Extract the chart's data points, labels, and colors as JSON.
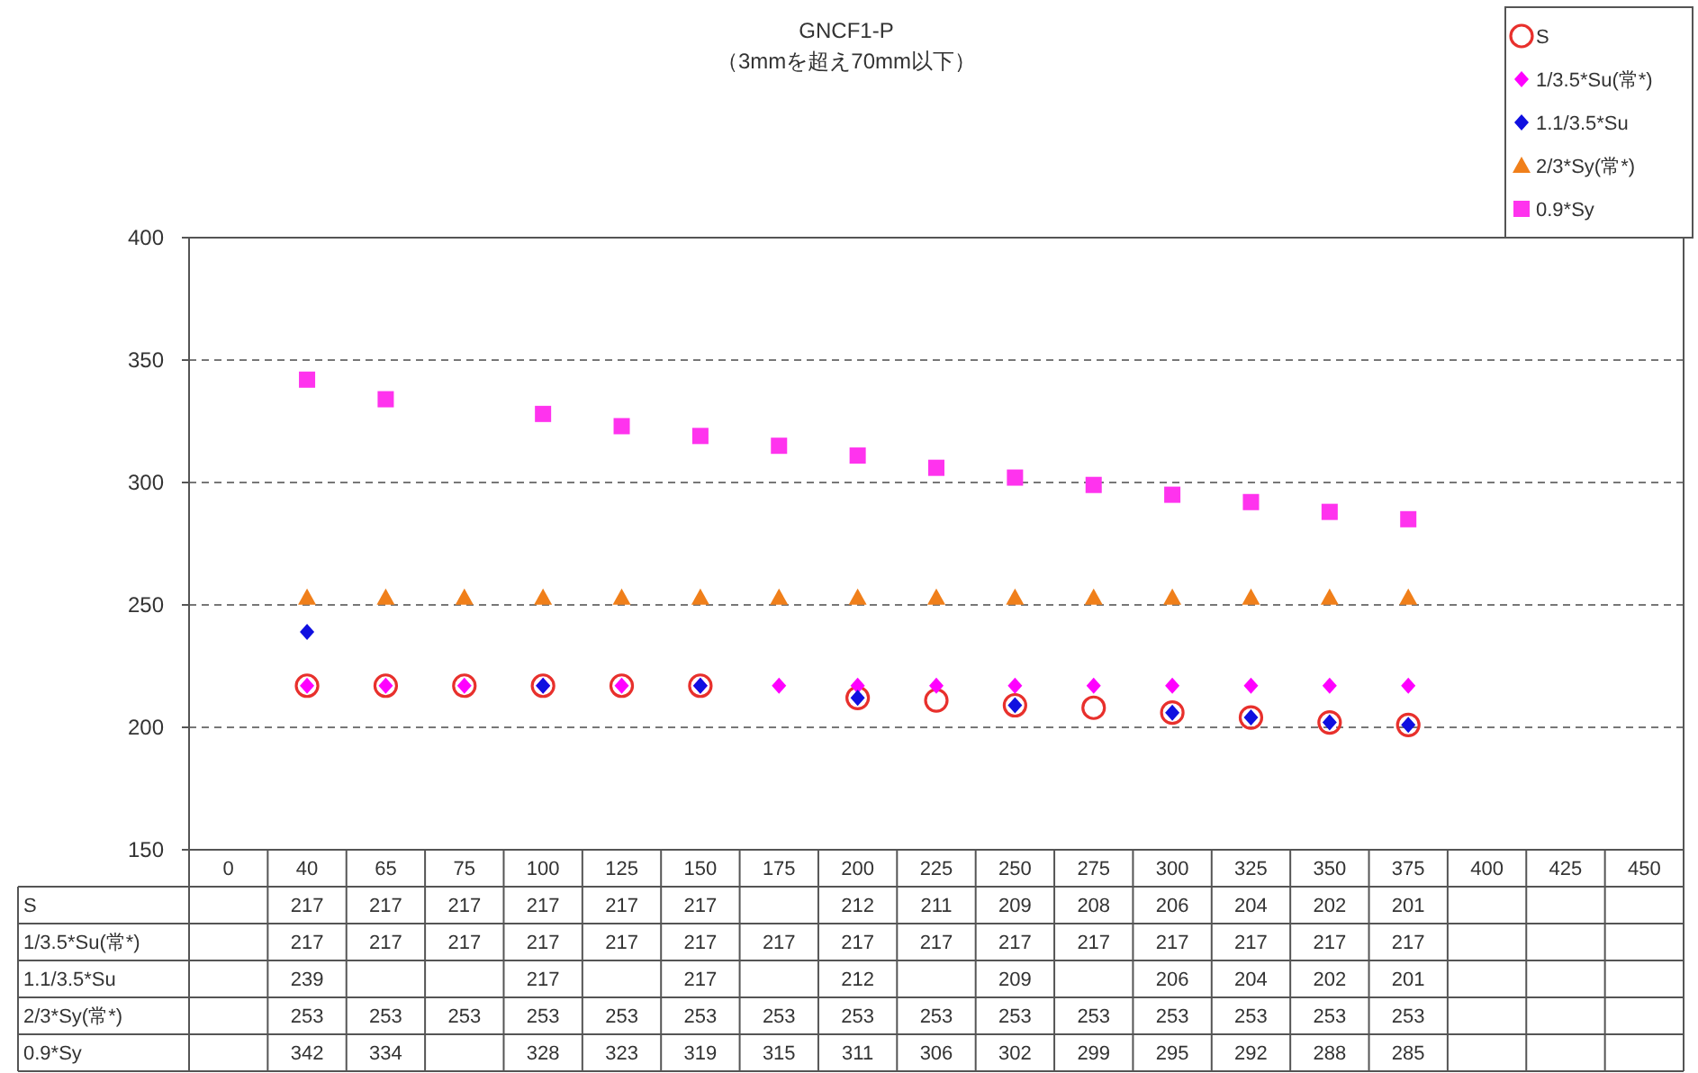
{
  "chart_data": {
    "type": "scatter",
    "title": "GNCF1-P",
    "subtitle": "（3mmを超え70mm以下）",
    "categories": [
      "0",
      "40",
      "65",
      "75",
      "100",
      "125",
      "150",
      "175",
      "200",
      "225",
      "250",
      "275",
      "300",
      "325",
      "350",
      "375",
      "400",
      "425",
      "450"
    ],
    "series": [
      {
        "name": "S",
        "color": "#e8302c",
        "marker": "circle",
        "values": [
          null,
          217,
          217,
          217,
          217,
          217,
          217,
          null,
          212,
          211,
          209,
          208,
          206,
          204,
          202,
          201,
          null,
          null,
          null
        ]
      },
      {
        "name": "1/3.5*Su(常*)",
        "color": "#ff00ff",
        "marker": "diamond",
        "values": [
          null,
          217,
          217,
          217,
          217,
          217,
          217,
          217,
          217,
          217,
          217,
          217,
          217,
          217,
          217,
          217,
          null,
          null,
          null
        ]
      },
      {
        "name": "1.1/3.5*Su",
        "color": "#1010e0",
        "marker": "diamond",
        "values": [
          null,
          239,
          null,
          null,
          217,
          null,
          217,
          null,
          212,
          null,
          209,
          null,
          206,
          204,
          202,
          201,
          null,
          null,
          null
        ]
      },
      {
        "name": "2/3*Sy(常*)",
        "color": "#f07f1a",
        "marker": "triangle",
        "values": [
          null,
          253,
          253,
          253,
          253,
          253,
          253,
          253,
          253,
          253,
          253,
          253,
          253,
          253,
          253,
          253,
          null,
          null,
          null
        ]
      },
      {
        "name": "0.9*Sy",
        "color": "#ff33ee",
        "marker": "square",
        "values": [
          null,
          342,
          334,
          null,
          328,
          323,
          319,
          315,
          311,
          306,
          302,
          299,
          295,
          292,
          288,
          285,
          null,
          null,
          null
        ]
      }
    ],
    "ylim": [
      150,
      400
    ],
    "yticks": [
      150,
      200,
      250,
      300,
      350,
      400
    ],
    "grid": "y",
    "legend": "top right",
    "data_labels": true
  }
}
